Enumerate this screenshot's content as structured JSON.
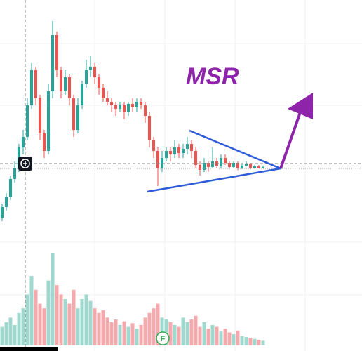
{
  "chart_data": {
    "type": "candlestick",
    "annotation": "MSR",
    "marker": "F",
    "ylim": [
      0,
      100
    ],
    "y2lim": [
      0,
      100
    ],
    "up_color": "#26a69a",
    "down_color": "#ef5350",
    "up_volume_color": "#9fd8cf",
    "down_volume_color": "#f5a9ad",
    "ohlc": [
      [
        38,
        42,
        37,
        41
      ],
      [
        41,
        45,
        40,
        44
      ],
      [
        44,
        50,
        43,
        49
      ],
      [
        49,
        54,
        48,
        52
      ],
      [
        52,
        59,
        51,
        58
      ],
      [
        58,
        63,
        56,
        61
      ],
      [
        61,
        72,
        60,
        70
      ],
      [
        70,
        82,
        69,
        80
      ],
      [
        80,
        81,
        70,
        72
      ],
      [
        72,
        73,
        60,
        62
      ],
      [
        62,
        63,
        55,
        57
      ],
      [
        57,
        76,
        56,
        74
      ],
      [
        74,
        94,
        72,
        90
      ],
      [
        90,
        91,
        78,
        80
      ],
      [
        80,
        81,
        72,
        74
      ],
      [
        74,
        80,
        73,
        78
      ],
      [
        78,
        79,
        70,
        72
      ],
      [
        72,
        73,
        61,
        63
      ],
      [
        63,
        72,
        62,
        70
      ],
      [
        70,
        77,
        69,
        76
      ],
      [
        76,
        83,
        75,
        80
      ],
      [
        80,
        84,
        78,
        81
      ],
      [
        81,
        82,
        76,
        78
      ],
      [
        78,
        79,
        73,
        75
      ],
      [
        75,
        76,
        71,
        72
      ],
      [
        72,
        74,
        70,
        71
      ],
      [
        71,
        72,
        68,
        70
      ],
      [
        70,
        71,
        67,
        69
      ],
      [
        69,
        71,
        68,
        70
      ],
      [
        70,
        71,
        66,
        68
      ],
      [
        68,
        71,
        67,
        70.4
      ],
      [
        70.4,
        72,
        68,
        69.6
      ],
      [
        69.6,
        72,
        68,
        71
      ],
      [
        71,
        72,
        69,
        70
      ],
      [
        70,
        71,
        65,
        67
      ],
      [
        67,
        68,
        58,
        60
      ],
      [
        60,
        61,
        55,
        57
      ],
      [
        57,
        58,
        47,
        52
      ],
      [
        52,
        57,
        51,
        55
      ],
      [
        55,
        58,
        54,
        57
      ],
      [
        57,
        58,
        54,
        56
      ],
      [
        56,
        60,
        55,
        58
      ],
      [
        58,
        59,
        55,
        56.4
      ],
      [
        56.4,
        59,
        55,
        57.6
      ],
      [
        57.6,
        61,
        56,
        59
      ],
      [
        59,
        60,
        55,
        57
      ],
      [
        57,
        58,
        52,
        53
      ],
      [
        53,
        54,
        50,
        51.6
      ],
      [
        51.6,
        55,
        51,
        53.6
      ],
      [
        53.6,
        54,
        51,
        52.4
      ],
      [
        52.4,
        58,
        52,
        54
      ],
      [
        54,
        55,
        52,
        52.8
      ],
      [
        52.8,
        56,
        52,
        55
      ],
      [
        55,
        56,
        53,
        53.6
      ],
      [
        53.6,
        54,
        52,
        52.4
      ],
      [
        52.4,
        54,
        52,
        53.6
      ],
      [
        53.6,
        54,
        51.5,
        52
      ],
      [
        52,
        53.5,
        51.8,
        52.8
      ],
      [
        52.8,
        54,
        52.5,
        53.4
      ],
      [
        53.4,
        53.6,
        51.8,
        52
      ],
      [
        52,
        53,
        51.9,
        52.6
      ],
      [
        52.6,
        53,
        52,
        52.2
      ],
      [
        52.2,
        52.8,
        52,
        52.4
      ]
    ],
    "volume": [
      20,
      25,
      30,
      22,
      35,
      40,
      55,
      75,
      60,
      45,
      40,
      70,
      100,
      65,
      55,
      50,
      45,
      60,
      40,
      50,
      55,
      48,
      40,
      35,
      38,
      30,
      25,
      28,
      22,
      26,
      20,
      24,
      18,
      22,
      30,
      35,
      40,
      45,
      30,
      28,
      25,
      22,
      20,
      30,
      25,
      28,
      32,
      20,
      25,
      18,
      22,
      20,
      15,
      18,
      14,
      12,
      16,
      10,
      9,
      8,
      7,
      6,
      5
    ]
  }
}
